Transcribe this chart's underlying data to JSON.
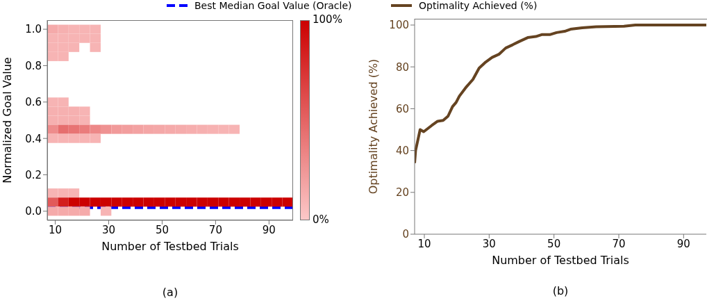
{
  "chart_data": [
    {
      "type": "scatter",
      "xlabel": "Number of Testbed Trials",
      "ylabel": "Normalized Goal Value",
      "annotations": [
        "(a)"
      ],
      "legend": "top",
      "marker": "square",
      "series": [
        {
          "x": [
            9,
            13,
            17,
            21,
            25,
            9,
            13,
            17,
            21,
            25,
            9,
            13,
            17,
            25,
            9,
            13,
            9,
            13,
            9,
            13,
            17,
            21,
            9,
            13,
            17,
            21,
            9,
            13,
            17,
            21,
            25,
            29,
            33,
            37,
            41,
            45,
            49,
            53,
            57,
            61,
            65,
            69,
            73,
            77,
            9,
            13,
            17,
            21,
            25,
            9,
            13,
            17,
            9,
            13,
            17,
            21,
            25,
            29,
            33,
            37,
            41,
            45,
            49,
            53,
            57,
            61,
            65,
            69,
            73,
            77,
            81,
            85,
            89,
            93,
            97,
            9,
            13,
            17,
            21,
            29
          ],
          "values": [
            1.0,
            1.0,
            1.0,
            1.0,
            1.0,
            0.95,
            0.95,
            0.95,
            0.95,
            0.95,
            0.9,
            0.9,
            0.9,
            0.9,
            0.85,
            0.85,
            0.6,
            0.6,
            0.55,
            0.55,
            0.55,
            0.55,
            0.5,
            0.5,
            0.5,
            0.5,
            0.45,
            0.45,
            0.45,
            0.45,
            0.45,
            0.45,
            0.45,
            0.45,
            0.45,
            0.45,
            0.45,
            0.45,
            0.45,
            0.45,
            0.45,
            0.45,
            0.45,
            0.45,
            0.4,
            0.4,
            0.4,
            0.4,
            0.4,
            0.1,
            0.1,
            0.1,
            0.05,
            0.05,
            0.05,
            0.05,
            0.05,
            0.05,
            0.05,
            0.05,
            0.05,
            0.05,
            0.05,
            0.05,
            0.05,
            0.05,
            0.05,
            0.05,
            0.05,
            0.05,
            0.05,
            0.05,
            0.05,
            0.05,
            0.05,
            0.0,
            0.0,
            0.0,
            0.0,
            0.0
          ],
          "cvalues": [
            15,
            12,
            10,
            10,
            10,
            10,
            10,
            10,
            10,
            10,
            10,
            10,
            10,
            10,
            10,
            10,
            10,
            10,
            12,
            12,
            12,
            10,
            12,
            12,
            12,
            10,
            30,
            45,
            42,
            38,
            32,
            27,
            23,
            21,
            19,
            17,
            16,
            15,
            14,
            13,
            12,
            11,
            10,
            10,
            10,
            10,
            10,
            10,
            10,
            10,
            10,
            10,
            55,
            85,
            100,
            100,
            100,
            100,
            100,
            100,
            100,
            100,
            100,
            100,
            100,
            100,
            100,
            100,
            100,
            100,
            100,
            100,
            100,
            100,
            100,
            15,
            15,
            15,
            15,
            10
          ]
        }
      ],
      "clim": [
        0,
        100
      ],
      "cticks": [
        {
          "value": 0,
          "label": "0%"
        },
        {
          "value": 100,
          "label": "100%"
        }
      ],
      "xlim": [
        7,
        99
      ],
      "xticks": [
        10,
        30,
        50,
        70,
        90
      ],
      "ylim": [
        -0.05,
        1.05
      ],
      "yticks": [
        {
          "value": 0,
          "label": "0.0"
        },
        {
          "value": 0.2,
          "label": "0.2"
        },
        {
          "value": 0.4,
          "label": "0.4"
        },
        {
          "value": 0.6,
          "label": "0.6"
        },
        {
          "value": 0.8,
          "label": "0.8"
        },
        {
          "value": 1.0,
          "label": "1.0"
        }
      ],
      "ref_lines": [
        {
          "axis": "y",
          "value": 0.02,
          "label": "Best Median Goal Value (Oracle)",
          "color": "#0000ff",
          "line_style": "dashed"
        }
      ]
    },
    {
      "type": "line",
      "xlabel": "Number of Testbed Trials",
      "ylabel": "Optimality Achieved (%)",
      "annotations": [
        "(b)"
      ],
      "legend": "top",
      "series": [
        {
          "name": "Optimality Achieved (%)",
          "color": "#654321",
          "x": [
            7,
            7.3,
            8.7,
            9.8,
            12.3,
            14.1,
            15.8,
            17.3,
            18.7,
            19.8,
            20.8,
            23,
            25,
            26.9,
            28.7,
            30.9,
            33,
            35.1,
            37.3,
            39.1,
            41.9,
            44.4,
            46.2,
            48.7,
            50.8,
            53.3,
            55.1,
            58.7,
            63,
            71.6,
            75.1,
            97
          ],
          "values": [
            34,
            40,
            50,
            49,
            52,
            54,
            54.4,
            56.4,
            61,
            63,
            66,
            70.5,
            74,
            79.4,
            82,
            84.5,
            86,
            89,
            90.6,
            92,
            94,
            94.5,
            95.4,
            95.4,
            96.4,
            97,
            98,
            98.7,
            99.2,
            99.4,
            100,
            100
          ]
        }
      ],
      "xlim": [
        7,
        97
      ],
      "xticks": [
        10,
        30,
        50,
        70,
        90
      ],
      "ylim": [
        0,
        103
      ],
      "yticks": [
        0,
        20,
        40,
        60,
        80,
        100
      ]
    }
  ]
}
